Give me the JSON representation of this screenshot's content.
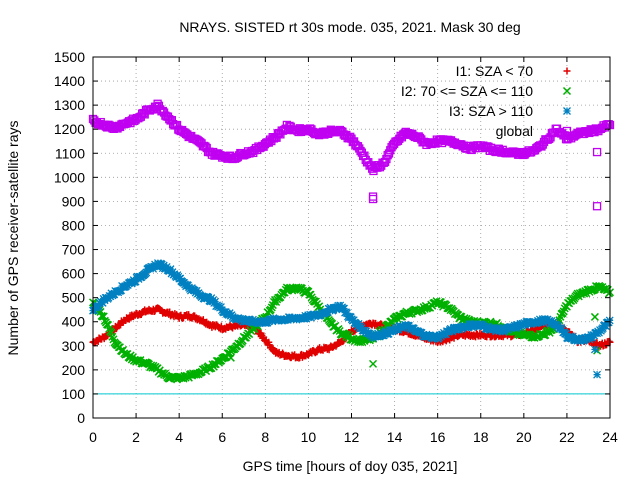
{
  "chart_data": {
    "type": "scatter",
    "title": "NRAYS. SISTED rt 30s mode. 035, 2021. Mask 30 deg",
    "xlabel": "GPS time [hours of doy 035, 2021]",
    "ylabel": "Number of GPS receiver-satellite rays",
    "xlim": [
      0,
      24
    ],
    "ylim": [
      0,
      1500
    ],
    "x_ticks": [
      "0",
      "2",
      "4",
      "6",
      "8",
      "10",
      "12",
      "14",
      "16",
      "18",
      "20",
      "22",
      "24"
    ],
    "y_ticks": [
      "0",
      "100",
      "200",
      "300",
      "400",
      "500",
      "600",
      "700",
      "800",
      "900",
      "1000",
      "1100",
      "1200",
      "1300",
      "1400",
      "1500"
    ],
    "grid": true,
    "legend_position": "top-right",
    "reference_line": {
      "y": 100,
      "color": "#00c8d0"
    },
    "series": [
      {
        "name": "I1: SZA < 70",
        "marker": "+",
        "color": "#e00000",
        "x": [
          0,
          0.5,
          1,
          1.5,
          2,
          2.5,
          3,
          3.5,
          4,
          4.5,
          5,
          5.5,
          6,
          6.5,
          7,
          7.5,
          8,
          8.5,
          9,
          9.5,
          10,
          10.5,
          11,
          11.5,
          12,
          12.5,
          13,
          13.5,
          14,
          14.5,
          15,
          15.5,
          16,
          16.5,
          17,
          17.5,
          18,
          18.5,
          19,
          19.5,
          20,
          20.5,
          21,
          21.5,
          22,
          22.5,
          23,
          23.5,
          24
        ],
        "y": [
          315,
          335,
          370,
          410,
          430,
          445,
          450,
          435,
          420,
          425,
          410,
          385,
          375,
          380,
          385,
          375,
          325,
          270,
          260,
          255,
          265,
          285,
          290,
          315,
          360,
          385,
          395,
          380,
          370,
          360,
          345,
          330,
          320,
          330,
          345,
          345,
          345,
          345,
          345,
          345,
          350,
          365,
          385,
          395,
          360,
          320,
          320,
          300,
          315
        ]
      },
      {
        "name": "I2: 70 <= SZA <= 110",
        "marker": "x",
        "color": "#00b000",
        "x": [
          0,
          0.5,
          1,
          1.5,
          2,
          2.5,
          3,
          3.5,
          4,
          4.5,
          5,
          5.5,
          6,
          6.5,
          7,
          7.5,
          8,
          8.5,
          9,
          9.5,
          10,
          10.5,
          11,
          11.5,
          12,
          12.5,
          13,
          13.5,
          14,
          14.5,
          15,
          15.5,
          16,
          16.5,
          17,
          17.5,
          18,
          18.5,
          19,
          19.5,
          20,
          20.5,
          21,
          21.5,
          22,
          22.5,
          23,
          23.5,
          24
        ],
        "y": [
          480,
          420,
          320,
          265,
          240,
          225,
          200,
          170,
          165,
          175,
          190,
          215,
          245,
          285,
          330,
          375,
          420,
          490,
          535,
          540,
          520,
          460,
          395,
          355,
          330,
          320,
          330,
          370,
          410,
          435,
          445,
          460,
          480,
          460,
          420,
          400,
          395,
          395,
          380,
          355,
          345,
          340,
          350,
          380,
          470,
          510,
          530,
          545,
          520
        ]
      },
      {
        "name": "I3: SZA > 110",
        "marker": "*",
        "color": "#0080c0",
        "x": [
          0,
          0.5,
          1,
          1.5,
          2,
          2.5,
          3,
          3.5,
          4,
          4.5,
          5,
          5.5,
          6,
          6.5,
          7,
          7.5,
          8,
          8.5,
          9,
          9.5,
          10,
          10.5,
          11,
          11.5,
          12,
          12.5,
          13,
          13.5,
          14,
          14.5,
          15,
          15.5,
          16,
          16.5,
          17,
          17.5,
          18,
          18.5,
          19,
          19.5,
          20,
          20.5,
          21,
          21.5,
          22,
          22.5,
          23,
          23.5,
          24
        ],
        "y": [
          450,
          490,
          520,
          550,
          575,
          610,
          640,
          620,
          580,
          540,
          510,
          490,
          450,
          420,
          405,
          400,
          400,
          410,
          410,
          415,
          420,
          430,
          450,
          465,
          410,
          370,
          340,
          350,
          365,
          385,
          360,
          340,
          335,
          360,
          375,
          385,
          385,
          370,
          365,
          375,
          390,
          400,
          405,
          390,
          340,
          325,
          330,
          360,
          400
        ]
      },
      {
        "name": "global",
        "marker": "square",
        "color": "#c000f0",
        "x": [
          0,
          0.5,
          1,
          1.5,
          2,
          2.5,
          3,
          3.5,
          4,
          4.5,
          5,
          5.5,
          6,
          6.5,
          7,
          7.5,
          8,
          8.5,
          9,
          9.5,
          10,
          10.5,
          11,
          11.5,
          12,
          12.5,
          13,
          13.5,
          14,
          14.5,
          15,
          15.5,
          16,
          16.5,
          17,
          17.5,
          18,
          18.5,
          19,
          19.5,
          20,
          20.5,
          21,
          21.5,
          22,
          22.5,
          23,
          23.5,
          24
        ],
        "y": [
          1235,
          1220,
          1205,
          1225,
          1240,
          1275,
          1300,
          1250,
          1200,
          1170,
          1140,
          1100,
          1090,
          1080,
          1100,
          1110,
          1140,
          1170,
          1210,
          1195,
          1200,
          1180,
          1190,
          1190,
          1160,
          1100,
          1030,
          1060,
          1140,
          1185,
          1170,
          1140,
          1150,
          1150,
          1140,
          1120,
          1130,
          1115,
          1110,
          1100,
          1100,
          1110,
          1150,
          1200,
          1160,
          1180,
          1190,
          1200,
          1220
        ]
      }
    ],
    "outliers": [
      {
        "series": "global",
        "x": 13.0,
        "y": 920
      },
      {
        "series": "global",
        "x": 13.0,
        "y": 910
      },
      {
        "series": "global",
        "x": 23.4,
        "y": 1105
      },
      {
        "series": "global",
        "x": 23.4,
        "y": 880
      },
      {
        "series": "I2: 70 <= SZA <= 110",
        "x": 13.0,
        "y": 225
      },
      {
        "series": "I2: 70 <= SZA <= 110",
        "x": 23.3,
        "y": 420
      },
      {
        "series": "I2: 70 <= SZA <= 110",
        "x": 23.4,
        "y": 280
      },
      {
        "series": "I2: 70 <= SZA <= 110",
        "x": 6.4,
        "y": 250
      },
      {
        "series": "I3: SZA > 110",
        "x": 23.4,
        "y": 180
      },
      {
        "series": "I3: SZA > 110",
        "x": 23.3,
        "y": 285
      }
    ]
  }
}
